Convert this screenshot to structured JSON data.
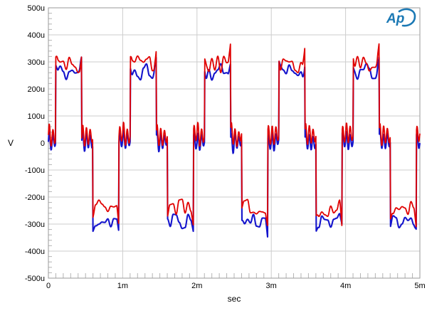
{
  "branding": {
    "logo_text": "Ap",
    "logo_color": "#1a78b4"
  },
  "axes": {
    "y": {
      "unit_label": "V",
      "ticks": [
        "500u",
        "400u",
        "300u",
        "200u",
        "100u",
        "0",
        "-100u",
        "-200u",
        "-300u",
        "-400u",
        "-500u"
      ],
      "min_u": -500,
      "max_u": 500,
      "major_step_u": 100,
      "minor_step_u": 20
    },
    "x": {
      "unit_label": "sec",
      "ticks": [
        "0",
        "1m",
        "2m",
        "3m",
        "4m",
        "5m"
      ],
      "min_ms": 0,
      "max_ms": 5,
      "major_step_ms": 1,
      "minor_step_ms": 0.1
    }
  },
  "chart_data": {
    "type": "line",
    "title": "",
    "xlabel": "sec",
    "ylabel": "V",
    "xlim_ms": [
      0,
      5
    ],
    "ylim_uV": [
      -500,
      500
    ],
    "grid": true,
    "legend": "none",
    "description": "Two-channel oscilloscope-style trace of a 1 kHz three-level (approx. +300u / 0 / -300u) square-like waveform with noise ripple on the plateaus and damped ringing around the zero-level transitions.",
    "waveform": {
      "period_ms": 1,
      "total_ms": 5,
      "sample_step_ms": 0.005,
      "noise_node_ms": 0.04,
      "ripple_u": 32,
      "ring_freq_khz": 20,
      "edge_ms": 0.028,
      "seed": 11,
      "segments": [
        {
          "level": "mid",
          "start": 0.0,
          "end": 0.1
        },
        {
          "level": "high",
          "start": 0.1,
          "end": 0.45
        },
        {
          "level": "mid",
          "start": 0.45,
          "end": 0.6
        },
        {
          "level": "low",
          "start": 0.6,
          "end": 0.95
        },
        {
          "level": "mid",
          "start": 0.95,
          "end": 1.0
        }
      ]
    },
    "series": [
      {
        "name": "blue-trace",
        "color": "#1414cc",
        "high_u": 262,
        "low_u": -286,
        "mid_u": 4,
        "ring_u": 40,
        "edge_spike_u": 42,
        "stroke_w": 2.1
      },
      {
        "name": "red-trace",
        "color": "#e00000",
        "high_u": 292,
        "low_u": -240,
        "mid_u": 26,
        "ring_u": 46,
        "edge_spike_u": 62,
        "stroke_w": 1.8
      }
    ],
    "colors": {
      "grid": "#cdcdcd",
      "minor_tick": "#b4b4b4",
      "plot_border": "#9a9a9a",
      "text": "#000000",
      "background": "#ffffff"
    }
  }
}
